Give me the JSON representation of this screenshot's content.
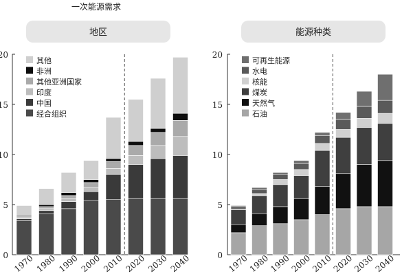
{
  "title": "一次能源需求",
  "chart_data": [
    {
      "type": "bar",
      "stacked": true,
      "panel_title": "地区",
      "categories": [
        "1970",
        "1980",
        "1990",
        "2000",
        "2010",
        "2020",
        "2030",
        "2040"
      ],
      "ylim": [
        0,
        20
      ],
      "yticks": [
        "0",
        "5",
        "10",
        "15",
        "20"
      ],
      "grid": false,
      "legend_position": "top-left",
      "divider_after": "2010",
      "series": [
        {
          "name": "经合组织",
          "color": "#4a4a4a",
          "values": [
            3.4,
            4.1,
            4.6,
            5.4,
            5.5,
            5.6,
            5.6,
            5.6
          ]
        },
        {
          "name": "中国",
          "color": "#3a3a3a",
          "values": [
            0.2,
            0.3,
            0.7,
            0.9,
            2.5,
            3.4,
            4.0,
            4.3
          ]
        },
        {
          "name": "印度",
          "color": "#bdbdbd",
          "values": [
            0.1,
            0.2,
            0.3,
            0.4,
            0.6,
            0.9,
            1.3,
            1.9
          ]
        },
        {
          "name": "其他亚洲国家",
          "color": "#aaaaaa",
          "values": [
            0.1,
            0.2,
            0.3,
            0.5,
            0.7,
            1.0,
            1.3,
            1.6
          ]
        },
        {
          "name": "非洲",
          "color": "#0d0d0d",
          "values": [
            0.1,
            0.2,
            0.3,
            0.3,
            0.3,
            0.4,
            0.4,
            0.7
          ]
        },
        {
          "name": "其他",
          "color": "#cfcfcf",
          "values": [
            1.0,
            1.6,
            2.0,
            1.9,
            4.1,
            4.2,
            5.0,
            5.6
          ]
        }
      ]
    },
    {
      "type": "bar",
      "stacked": true,
      "panel_title": "能源种类",
      "categories": [
        "1970",
        "1980",
        "1990",
        "2000",
        "2010",
        "2020",
        "2030",
        "2040"
      ],
      "ylim": [
        0,
        20
      ],
      "yticks": [
        "0",
        "5",
        "10",
        "15",
        "20"
      ],
      "grid": false,
      "legend_position": "top-left",
      "divider_after": "2010",
      "series": [
        {
          "name": "石油",
          "color": "#a6a6a6",
          "values": [
            2.2,
            2.9,
            3.1,
            3.5,
            4.0,
            4.6,
            4.8,
            4.8
          ]
        },
        {
          "name": "天然气",
          "color": "#111111",
          "values": [
            0.8,
            1.2,
            1.7,
            2.1,
            2.8,
            3.5,
            4.2,
            4.6
          ]
        },
        {
          "name": "煤炭",
          "color": "#3f3f3f",
          "values": [
            1.5,
            1.8,
            2.2,
            2.3,
            3.6,
            3.6,
            3.7,
            3.7
          ]
        },
        {
          "name": "核能",
          "color": "#d0d0d0",
          "values": [
            0.05,
            0.2,
            0.5,
            0.6,
            0.7,
            0.8,
            0.9,
            1.0
          ]
        },
        {
          "name": "水电",
          "color": "#5a5a5a",
          "values": [
            0.25,
            0.4,
            0.5,
            0.6,
            0.8,
            1.0,
            1.2,
            1.3
          ]
        },
        {
          "name": "可再生能源",
          "color": "#6f6f6f",
          "values": [
            0.1,
            0.2,
            0.2,
            0.3,
            0.3,
            0.7,
            1.5,
            2.6
          ]
        }
      ]
    }
  ]
}
